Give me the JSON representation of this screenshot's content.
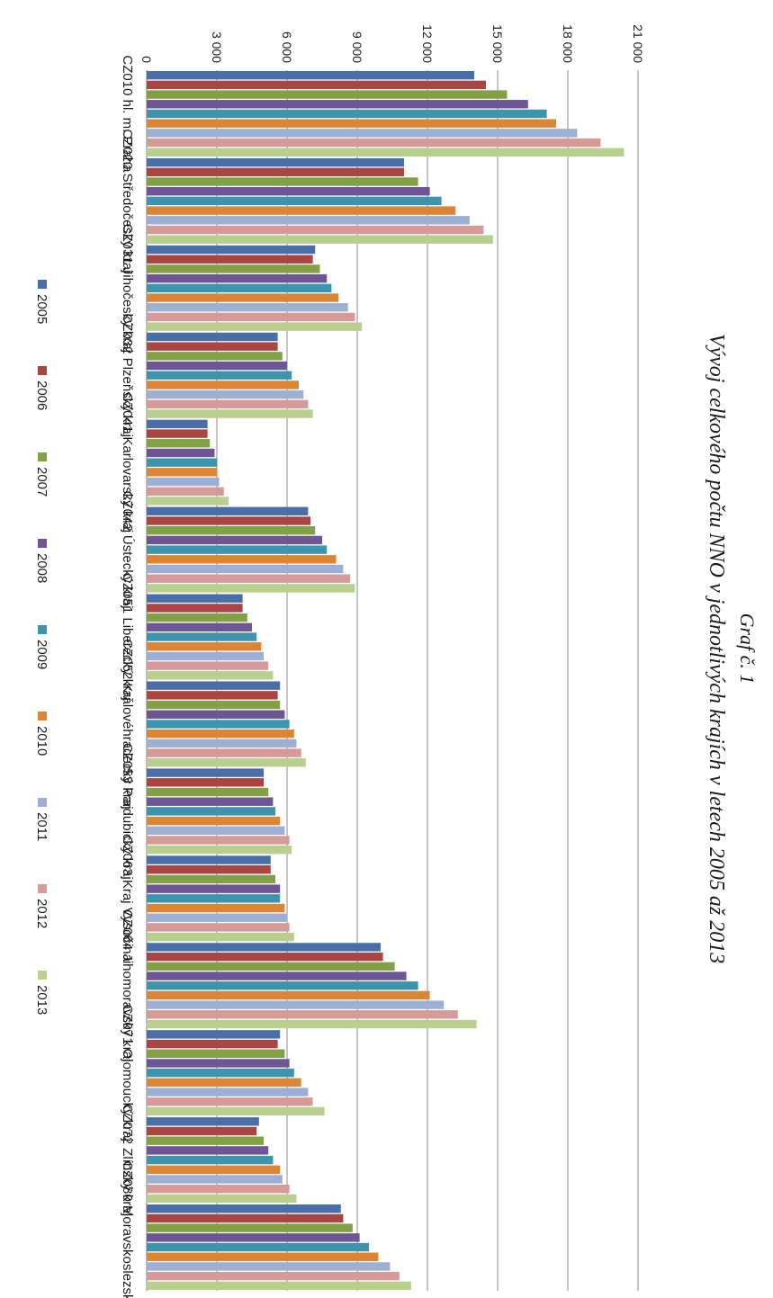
{
  "chart_data": {
    "type": "bar",
    "orientation": "horizontal, page rotated 90° clockwise",
    "title": "Graf č. 1",
    "subtitle": "Vývoj celkového počtu NNO v jednotlivých krajích v letech 2005 až 2013",
    "categories": [
      "CZ010 hl. m. Praha",
      "CZ020 Středočeský kraj",
      "CZ031 Jihočeský kraj",
      "CZ032 Plzeňský kraj",
      "CZ041 Karlovarský kraj",
      "CZ042 Ústecký kraj",
      "CZ051 Liberecký kraj",
      "CZ052 Královéhradecký kraj",
      "CZ053 Pardubický kraj",
      "CZ063 Kraj Vysočina",
      "CZ064 Jihomoravský kraj",
      "CZ071 Olomoucký kraj",
      "CZ072 Zlínský kraj",
      "CZ080 Moravskoslezský kraj"
    ],
    "value_axis": {
      "min": 0,
      "max": 21000,
      "ticks": [
        0,
        3000,
        6000,
        9000,
        12000,
        15000,
        18000,
        21000
      ],
      "tick_labels": [
        "0",
        "3 000",
        "6 000",
        "9 000",
        "12 000",
        "15 000",
        "18 000",
        "21 000"
      ]
    },
    "grid": true,
    "legend_position": "bottom",
    "series": [
      {
        "name": "2005",
        "color": "#4a6fa8",
        "values": [
          14000,
          11000,
          7200,
          5600,
          2600,
          6900,
          4100,
          5700,
          5000,
          5300,
          10000,
          5700,
          4800,
          8300
        ]
      },
      {
        "name": "2006",
        "color": "#a94643",
        "values": [
          14500,
          11000,
          7100,
          5600,
          2600,
          7000,
          4100,
          5600,
          5000,
          5300,
          10100,
          5600,
          4700,
          8400
        ]
      },
      {
        "name": "2007",
        "color": "#82a045",
        "values": [
          15400,
          11600,
          7400,
          5800,
          2700,
          7200,
          4300,
          5700,
          5200,
          5500,
          10600,
          5900,
          5000,
          8800
        ]
      },
      {
        "name": "2008",
        "color": "#6e5595",
        "values": [
          16300,
          12100,
          7700,
          6000,
          2900,
          7500,
          4500,
          5900,
          5400,
          5700,
          11100,
          6100,
          5200,
          9100
        ]
      },
      {
        "name": "2009",
        "color": "#3d95ad",
        "values": [
          17100,
          12600,
          7900,
          6200,
          3000,
          7700,
          4700,
          6100,
          5500,
          5700,
          11600,
          6300,
          5400,
          9500
        ]
      },
      {
        "name": "2010",
        "color": "#dc8535",
        "values": [
          17500,
          13200,
          8200,
          6500,
          3000,
          8100,
          4900,
          6300,
          5700,
          5900,
          12100,
          6600,
          5700,
          9900
        ]
      },
      {
        "name": "2011",
        "color": "#9db0d4",
        "values": [
          18400,
          13800,
          8600,
          6700,
          3100,
          8400,
          5000,
          6400,
          5900,
          6000,
          12700,
          6900,
          5800,
          10400
        ]
      },
      {
        "name": "2012",
        "color": "#d69a98",
        "values": [
          19400,
          14400,
          8900,
          6900,
          3300,
          8700,
          5200,
          6600,
          6100,
          6100,
          13300,
          7100,
          6100,
          10800
        ]
      },
      {
        "name": "2013",
        "color": "#b8cf8f",
        "values": [
          20400,
          14800,
          9200,
          7100,
          3500,
          8900,
          5400,
          6800,
          6200,
          6300,
          14100,
          7600,
          6400,
          11300
        ]
      }
    ]
  }
}
